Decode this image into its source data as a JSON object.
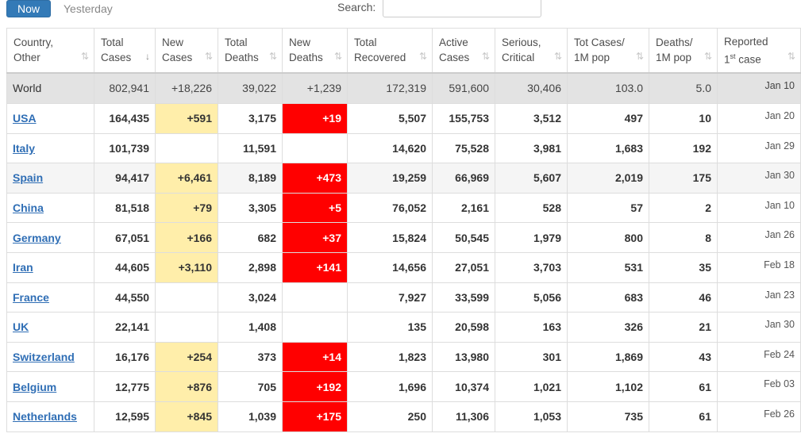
{
  "tabs": {
    "now": "Now",
    "yesterday": "Yesterday"
  },
  "search": {
    "label": "Search:",
    "value": ""
  },
  "headers": [
    {
      "l1": "Country,",
      "l2": "Other",
      "sort": "⇅"
    },
    {
      "l1": "Total",
      "l2": "Cases",
      "sort": "↓"
    },
    {
      "l1": "New",
      "l2": "Cases",
      "sort": "⇅"
    },
    {
      "l1": "Total",
      "l2": "Deaths",
      "sort": "⇅"
    },
    {
      "l1": "New",
      "l2": "Deaths",
      "sort": "⇅"
    },
    {
      "l1": "Total",
      "l2": "Recovered",
      "sort": "⇅"
    },
    {
      "l1": "Active",
      "l2": "Cases",
      "sort": "⇅"
    },
    {
      "l1": "Serious,",
      "l2": "Critical",
      "sort": "⇅"
    },
    {
      "l1": "Tot Cases/",
      "l2": "1M pop",
      "sort": "⇅"
    },
    {
      "l1": "Deaths/",
      "l2": "1M pop",
      "sort": "⇅"
    },
    {
      "l1": "Reported",
      "l2pre": "1",
      "l2sup": "st",
      "l2post": " case",
      "sort": "⇅"
    }
  ],
  "rows": [
    {
      "country": "World",
      "total_cases": "802,941",
      "new_cases": "+18,226",
      "total_deaths": "39,022",
      "new_deaths": "+1,239",
      "total_recovered": "172,319",
      "active_cases": "591,600",
      "serious": "30,406",
      "cases_per_1m": "103.0",
      "deaths_per_1m": "5.0",
      "first_case": "Jan 10"
    },
    {
      "country": "USA",
      "total_cases": "164,435",
      "new_cases": "+591",
      "total_deaths": "3,175",
      "new_deaths": "+19",
      "total_recovered": "5,507",
      "active_cases": "155,753",
      "serious": "3,512",
      "cases_per_1m": "497",
      "deaths_per_1m": "10",
      "first_case": "Jan 20"
    },
    {
      "country": "Italy",
      "total_cases": "101,739",
      "new_cases": "",
      "total_deaths": "11,591",
      "new_deaths": "",
      "total_recovered": "14,620",
      "active_cases": "75,528",
      "serious": "3,981",
      "cases_per_1m": "1,683",
      "deaths_per_1m": "192",
      "first_case": "Jan 29"
    },
    {
      "country": "Spain",
      "total_cases": "94,417",
      "new_cases": "+6,461",
      "total_deaths": "8,189",
      "new_deaths": "+473",
      "total_recovered": "19,259",
      "active_cases": "66,969",
      "serious": "5,607",
      "cases_per_1m": "2,019",
      "deaths_per_1m": "175",
      "first_case": "Jan 30"
    },
    {
      "country": "China",
      "total_cases": "81,518",
      "new_cases": "+79",
      "total_deaths": "3,305",
      "new_deaths": "+5",
      "total_recovered": "76,052",
      "active_cases": "2,161",
      "serious": "528",
      "cases_per_1m": "57",
      "deaths_per_1m": "2",
      "first_case": "Jan 10"
    },
    {
      "country": "Germany",
      "total_cases": "67,051",
      "new_cases": "+166",
      "total_deaths": "682",
      "new_deaths": "+37",
      "total_recovered": "15,824",
      "active_cases": "50,545",
      "serious": "1,979",
      "cases_per_1m": "800",
      "deaths_per_1m": "8",
      "first_case": "Jan 26"
    },
    {
      "country": "Iran",
      "total_cases": "44,605",
      "new_cases": "+3,110",
      "total_deaths": "2,898",
      "new_deaths": "+141",
      "total_recovered": "14,656",
      "active_cases": "27,051",
      "serious": "3,703",
      "cases_per_1m": "531",
      "deaths_per_1m": "35",
      "first_case": "Feb 18"
    },
    {
      "country": "France",
      "total_cases": "44,550",
      "new_cases": "",
      "total_deaths": "3,024",
      "new_deaths": "",
      "total_recovered": "7,927",
      "active_cases": "33,599",
      "serious": "5,056",
      "cases_per_1m": "683",
      "deaths_per_1m": "46",
      "first_case": "Jan 23"
    },
    {
      "country": "UK",
      "total_cases": "22,141",
      "new_cases": "",
      "total_deaths": "1,408",
      "new_deaths": "",
      "total_recovered": "135",
      "active_cases": "20,598",
      "serious": "163",
      "cases_per_1m": "326",
      "deaths_per_1m": "21",
      "first_case": "Jan 30"
    },
    {
      "country": "Switzerland",
      "total_cases": "16,176",
      "new_cases": "+254",
      "total_deaths": "373",
      "new_deaths": "+14",
      "total_recovered": "1,823",
      "active_cases": "13,980",
      "serious": "301",
      "cases_per_1m": "1,869",
      "deaths_per_1m": "43",
      "first_case": "Feb 24"
    },
    {
      "country": "Belgium",
      "total_cases": "12,775",
      "new_cases": "+876",
      "total_deaths": "705",
      "new_deaths": "+192",
      "total_recovered": "1,696",
      "active_cases": "10,374",
      "serious": "1,021",
      "cases_per_1m": "1,102",
      "deaths_per_1m": "61",
      "first_case": "Feb 03"
    },
    {
      "country": "Netherlands",
      "total_cases": "12,595",
      "new_cases": "+845",
      "total_deaths": "1,039",
      "new_deaths": "+175",
      "total_recovered": "250",
      "active_cases": "11,306",
      "serious": "1,053",
      "cases_per_1m": "735",
      "deaths_per_1m": "61",
      "first_case": "Feb 26"
    }
  ],
  "colors": {
    "new_cases_highlight": "#ffeeaa",
    "new_deaths_highlight": "#ff0000",
    "link": "#2f6eb5",
    "active_tab": "#337ab7"
  }
}
